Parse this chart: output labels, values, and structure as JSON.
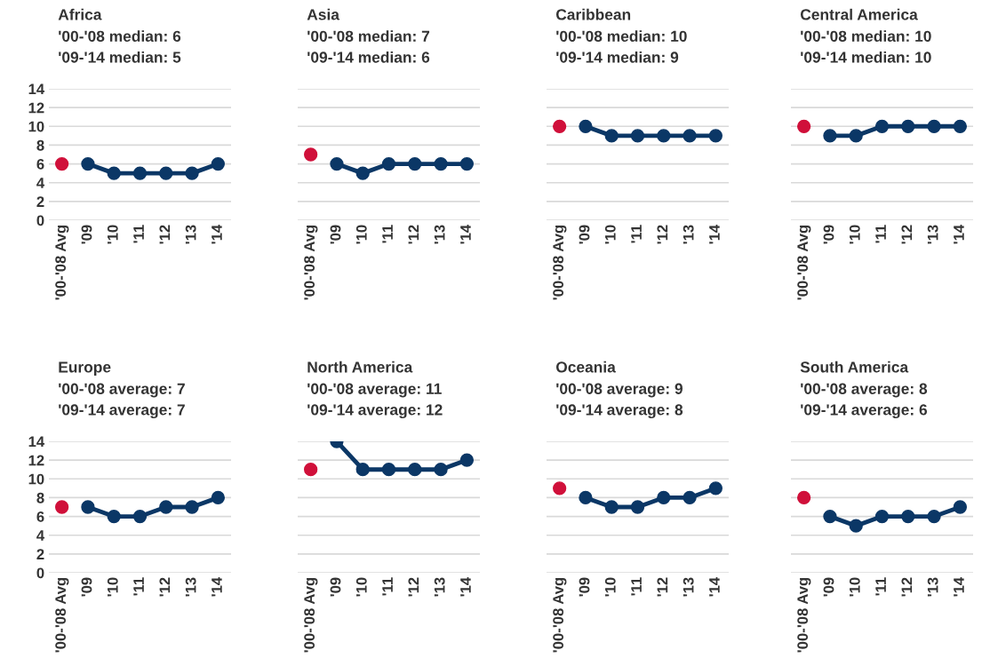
{
  "chart_data": [
    {
      "type": "line",
      "title": "Africa",
      "annotations": [
        "'00-'08 median: 6",
        "'09-'14 median: 5"
      ],
      "categories": [
        "'00-'08 Avg",
        "'09",
        "'10",
        "'11",
        "'12",
        "'13",
        "'14"
      ],
      "series": [
        {
          "type": "scatter",
          "color": "#d0103a",
          "values": [
            6,
            null,
            null,
            null,
            null,
            null,
            null
          ]
        },
        {
          "type": "line",
          "color": "#0b3766",
          "values": [
            null,
            6,
            5,
            5,
            5,
            5,
            6
          ]
        }
      ],
      "ylim": [
        0,
        14
      ],
      "yticks": [
        0,
        2,
        4,
        6,
        8,
        10,
        12,
        14
      ],
      "grid": "y",
      "marker": "circle",
      "line_style": "solid"
    },
    {
      "type": "line",
      "title": "Asia",
      "annotations": [
        "'00-'08 median: 7",
        "'09-'14 median: 6"
      ],
      "categories": [
        "'00-'08 Avg",
        "'09",
        "'10",
        "'11",
        "'12",
        "'13",
        "'14"
      ],
      "series": [
        {
          "type": "scatter",
          "color": "#d0103a",
          "values": [
            7,
            null,
            null,
            null,
            null,
            null,
            null
          ]
        },
        {
          "type": "line",
          "color": "#0b3766",
          "values": [
            null,
            6,
            5,
            6,
            6,
            6,
            6
          ]
        }
      ],
      "ylim": [
        0,
        14
      ],
      "yticks": [
        0,
        2,
        4,
        6,
        8,
        10,
        12,
        14
      ],
      "grid": "y",
      "marker": "circle",
      "line_style": "solid",
      "tick_labels": "x"
    },
    {
      "type": "line",
      "title": "Caribbean",
      "annotations": [
        "'00-'08 median: 10",
        "'09-'14 median: 9"
      ],
      "categories": [
        "'00-'08 Avg",
        "'09",
        "'10",
        "'11",
        "'12",
        "'13",
        "'14"
      ],
      "series": [
        {
          "type": "scatter",
          "color": "#d0103a",
          "values": [
            10,
            null,
            null,
            null,
            null,
            null,
            null
          ]
        },
        {
          "type": "line",
          "color": "#0b3766",
          "values": [
            null,
            10,
            9,
            9,
            9,
            9,
            9
          ]
        }
      ],
      "ylim": [
        0,
        14
      ],
      "yticks": [
        0,
        2,
        4,
        6,
        8,
        10,
        12,
        14
      ],
      "grid": "y",
      "marker": "circle",
      "line_style": "solid",
      "tick_labels": "x"
    },
    {
      "type": "line",
      "title": "Central America",
      "annotations": [
        "'00-'08 median: 10",
        "'09-'14 median: 10"
      ],
      "categories": [
        "'00-'08 Avg",
        "'09",
        "'10",
        "'11",
        "'12",
        "'13",
        "'14"
      ],
      "series": [
        {
          "type": "scatter",
          "color": "#d0103a",
          "values": [
            10,
            null,
            null,
            null,
            null,
            null,
            null
          ]
        },
        {
          "type": "line",
          "color": "#0b3766",
          "values": [
            null,
            9,
            9,
            10,
            10,
            10,
            10
          ]
        }
      ],
      "ylim": [
        0,
        14
      ],
      "yticks": [
        0,
        2,
        4,
        6,
        8,
        10,
        12,
        14
      ],
      "grid": "y",
      "marker": "circle",
      "line_style": "solid",
      "tick_labels": "x"
    },
    {
      "type": "line",
      "title": "Europe",
      "annotations": [
        "'00-'08 average: 7",
        "'09-'14 average: 7"
      ],
      "categories": [
        "'00-'08 Avg",
        "'09",
        "'10",
        "'11",
        "'12",
        "'13",
        "'14"
      ],
      "series": [
        {
          "type": "scatter",
          "color": "#d0103a",
          "values": [
            7,
            null,
            null,
            null,
            null,
            null,
            null
          ]
        },
        {
          "type": "line",
          "color": "#0b3766",
          "values": [
            null,
            7,
            6,
            6,
            7,
            7,
            8
          ]
        }
      ],
      "ylim": [
        0,
        14
      ],
      "yticks": [
        0,
        2,
        4,
        6,
        8,
        10,
        12,
        14
      ],
      "grid": "y",
      "marker": "circle",
      "line_style": "solid"
    },
    {
      "type": "line",
      "title": "North America",
      "annotations": [
        "'00-'08 average: 11",
        "'09-'14 average: 12"
      ],
      "categories": [
        "'00-'08 Avg",
        "'09",
        "'10",
        "'11",
        "'12",
        "'13",
        "'14"
      ],
      "series": [
        {
          "type": "scatter",
          "color": "#d0103a",
          "values": [
            11,
            null,
            null,
            null,
            null,
            null,
            null
          ]
        },
        {
          "type": "line",
          "color": "#0b3766",
          "values": [
            null,
            14,
            11,
            11,
            11,
            11,
            12
          ]
        }
      ],
      "ylim": [
        0,
        14
      ],
      "yticks": [
        0,
        2,
        4,
        6,
        8,
        10,
        12,
        14
      ],
      "grid": "y",
      "marker": "circle",
      "line_style": "solid",
      "tick_labels": "x"
    },
    {
      "type": "line",
      "title": "Oceania",
      "annotations": [
        "'00-'08 average: 9",
        "'09-'14 average: 8"
      ],
      "categories": [
        "'00-'08 Avg",
        "'09",
        "'10",
        "'11",
        "'12",
        "'13",
        "'14"
      ],
      "series": [
        {
          "type": "scatter",
          "color": "#d0103a",
          "values": [
            9,
            null,
            null,
            null,
            null,
            null,
            null
          ]
        },
        {
          "type": "line",
          "color": "#0b3766",
          "values": [
            null,
            8,
            7,
            7,
            8,
            8,
            9
          ]
        }
      ],
      "ylim": [
        0,
        14
      ],
      "yticks": [
        0,
        2,
        4,
        6,
        8,
        10,
        12,
        14
      ],
      "grid": "y",
      "marker": "circle",
      "line_style": "solid",
      "tick_labels": "x"
    },
    {
      "type": "line",
      "title": "South America",
      "annotations": [
        "'00-'08 average: 8",
        "'09-'14 average: 6"
      ],
      "categories": [
        "'00-'08 Avg",
        "'09",
        "'10",
        "'11",
        "'12",
        "'13",
        "'14"
      ],
      "series": [
        {
          "type": "scatter",
          "color": "#d0103a",
          "values": [
            8,
            null,
            null,
            null,
            null,
            null,
            null
          ]
        },
        {
          "type": "line",
          "color": "#0b3766",
          "values": [
            null,
            6,
            5,
            6,
            6,
            6,
            7
          ]
        }
      ],
      "ylim": [
        0,
        14
      ],
      "yticks": [
        0,
        2,
        4,
        6,
        8,
        10,
        12,
        14
      ],
      "grid": "y",
      "marker": "circle",
      "line_style": "solid",
      "tick_labels": "x"
    }
  ]
}
